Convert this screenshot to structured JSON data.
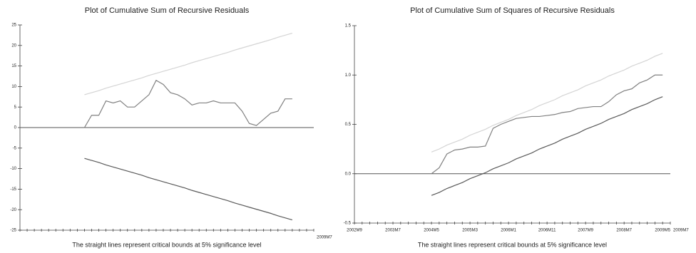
{
  "chart_data": [
    {
      "type": "line",
      "title": "Plot of Cumulative Sum of Recursive Residuals",
      "subtitle": "The straight lines represent critical bounds at 5% significance level",
      "categories": [
        null,
        null,
        null,
        null,
        null,
        null,
        null,
        null,
        null,
        null,
        null,
        null,
        null,
        null,
        null,
        null,
        null,
        null,
        null,
        null,
        null,
        null,
        null,
        null,
        null,
        null,
        null,
        null,
        null,
        null,
        null,
        null,
        null,
        null,
        null,
        null,
        null,
        null,
        null,
        null,
        null,
        "2009M7"
      ],
      "ylim": [
        -25,
        25
      ],
      "yticks": [
        -25,
        -20,
        -15,
        -10,
        -5,
        0,
        5,
        10,
        15,
        20,
        25
      ],
      "hline": 0,
      "series": [
        {
          "color": "#d4d4d4",
          "values": [
            null,
            null,
            null,
            null,
            null,
            null,
            null,
            null,
            null,
            8.0,
            8.5,
            9.0,
            9.6,
            10.1,
            10.6,
            11.1,
            11.6,
            12.1,
            12.7,
            13.2,
            13.7,
            14.2,
            14.7,
            15.2,
            15.8,
            16.3,
            16.8,
            17.3,
            17.8,
            18.3,
            18.9,
            19.4,
            19.9,
            20.4,
            20.9,
            21.4,
            22.0,
            22.5,
            23.0,
            null,
            null,
            null
          ]
        },
        {
          "color": "#808080",
          "values": [
            null,
            null,
            null,
            null,
            null,
            null,
            null,
            null,
            null,
            0,
            3,
            3,
            6.5,
            6,
            6.5,
            5,
            5,
            6.5,
            8,
            11.5,
            10.5,
            8.5,
            8,
            7,
            5.5,
            6,
            6,
            6.5,
            6,
            6,
            6,
            4,
            1,
            0.5,
            2,
            3.5,
            4,
            7,
            7,
            null,
            null,
            null
          ]
        },
        {
          "color": "#5a5a5a",
          "values": [
            null,
            null,
            null,
            null,
            null,
            null,
            null,
            null,
            null,
            -7.5,
            -8.0,
            -8.5,
            -9.1,
            -9.6,
            -10.1,
            -10.6,
            -11.1,
            -11.6,
            -12.2,
            -12.7,
            -13.2,
            -13.7,
            -14.2,
            -14.7,
            -15.3,
            -15.8,
            -16.3,
            -16.8,
            -17.3,
            -17.8,
            -18.4,
            -18.9,
            -19.4,
            -19.9,
            -20.4,
            -20.9,
            -21.5,
            -22.0,
            -22.5,
            null,
            null,
            null
          ]
        }
      ]
    },
    {
      "type": "line",
      "title": "Plot of Cumulative Sum of Squares of Recursive Residuals",
      "subtitle": "The straight lines represent critical bounds at 5% significance level",
      "categories": [
        "2002M9",
        null,
        null,
        null,
        null,
        "2003M7",
        null,
        null,
        null,
        null,
        "2004M5",
        null,
        null,
        null,
        null,
        "2005M3",
        null,
        null,
        null,
        null,
        "2006M1",
        null,
        null,
        null,
        null,
        "2006M11",
        null,
        null,
        null,
        null,
        "2007M9",
        null,
        null,
        null,
        null,
        "2008M7",
        null,
        null,
        null,
        null,
        "2009M5",
        "2009M7"
      ],
      "ylim": [
        -0.5,
        1.5
      ],
      "yticks": [
        -0.5,
        {
          "value": 0,
          "label": "0.0"
        },
        0.5,
        {
          "value": 1,
          "label": "1.0"
        },
        1.5
      ],
      "hline": 0,
      "series": [
        {
          "color": "#d4d4d4",
          "values": [
            null,
            null,
            null,
            null,
            null,
            null,
            null,
            null,
            null,
            null,
            0.22,
            0.25,
            0.29,
            0.32,
            0.35,
            0.39,
            0.42,
            0.45,
            0.49,
            0.52,
            0.55,
            0.59,
            0.62,
            0.65,
            0.69,
            0.72,
            0.75,
            0.79,
            0.82,
            0.85,
            0.89,
            0.92,
            0.95,
            0.99,
            1.02,
            1.05,
            1.09,
            1.12,
            1.15,
            1.19,
            1.22,
            null
          ]
        },
        {
          "color": "#808080",
          "values": [
            null,
            null,
            null,
            null,
            null,
            null,
            null,
            null,
            null,
            null,
            0,
            0.06,
            0.2,
            0.24,
            0.25,
            0.27,
            0.27,
            0.28,
            0.46,
            0.5,
            0.53,
            0.56,
            0.57,
            0.58,
            0.58,
            0.59,
            0.6,
            0.62,
            0.63,
            0.66,
            0.67,
            0.68,
            0.68,
            0.73,
            0.8,
            0.84,
            0.86,
            0.92,
            0.95,
            1.0,
            1.0,
            null
          ]
        },
        {
          "color": "#5a5a5a",
          "values": [
            null,
            null,
            null,
            null,
            null,
            null,
            null,
            null,
            null,
            null,
            -0.22,
            -0.19,
            -0.15,
            -0.12,
            -0.09,
            -0.05,
            -0.02,
            0.01,
            0.05,
            0.08,
            0.11,
            0.15,
            0.18,
            0.21,
            0.25,
            0.28,
            0.31,
            0.35,
            0.38,
            0.41,
            0.45,
            0.48,
            0.51,
            0.55,
            0.58,
            0.61,
            0.65,
            0.68,
            0.71,
            0.75,
            0.78,
            null
          ]
        }
      ]
    }
  ]
}
